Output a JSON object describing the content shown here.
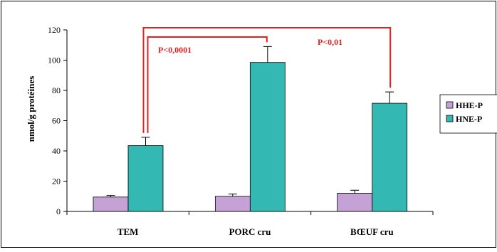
{
  "chart_data": {
    "type": "bar",
    "categories": [
      "TEM",
      "PORC cru",
      "BŒUF cru"
    ],
    "series": [
      {
        "name": "HHE-P",
        "color": "#c5a2d6",
        "values": [
          9.5,
          10,
          12
        ],
        "errors": [
          1,
          1.5,
          2
        ]
      },
      {
        "name": "HNE-P",
        "color": "#33b8b3",
        "values": [
          43.5,
          98.5,
          71.5
        ],
        "errors": [
          5.5,
          10.5,
          7.5
        ]
      }
    ],
    "ylabel": "nmol/g protéines",
    "ylim": [
      0,
      120
    ],
    "yticks": [
      0,
      20,
      40,
      60,
      80,
      100,
      120
    ],
    "grid": false,
    "legend_position": "right",
    "annotations": [
      {
        "text": "P<0,0001",
        "from": "TEM",
        "to": "PORC cru",
        "color": "#e8201d"
      },
      {
        "text": "P<0,01",
        "from": "TEM",
        "to": "BŒUF cru",
        "color": "#e8201d"
      }
    ]
  }
}
